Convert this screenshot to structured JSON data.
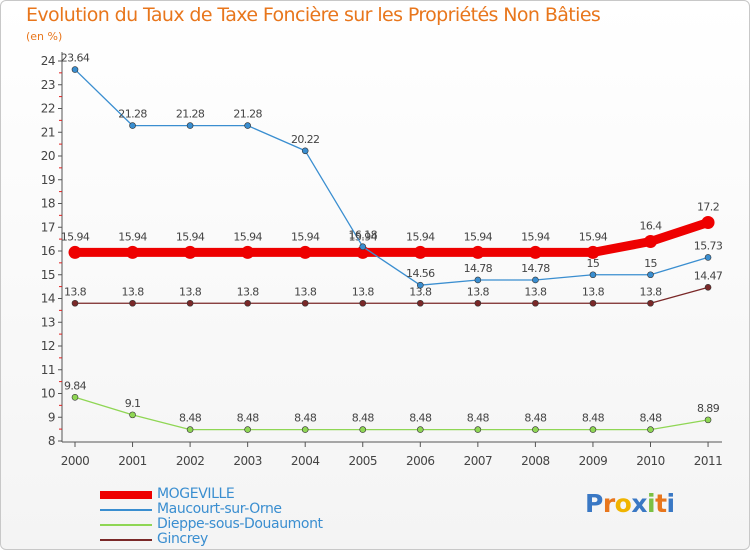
{
  "header": {
    "title": "Evolution du Taux de Taxe Foncière sur les Propriétés Non Bâties",
    "unit_label": "(en %)"
  },
  "logo": {
    "text": "Proxiti",
    "letters": [
      "P",
      "r",
      "o",
      "x",
      "i",
      "t",
      "i"
    ],
    "colors": [
      "#3a78c4",
      "#e8761c",
      "#f0b400",
      "#3a78c4",
      "#7cc043",
      "#e8761c",
      "#3a78c4"
    ]
  },
  "chart_data": {
    "type": "line",
    "title": "Evolution du Taux de Taxe Foncière sur les Propriétés Non Bâties",
    "ylabel": "(en %)",
    "xlabel": "",
    "ylim": [
      8,
      24
    ],
    "yticks": [
      "8",
      "9",
      "10",
      "11",
      "12",
      "13",
      "14",
      "15",
      "16",
      "17",
      "18",
      "19",
      "20",
      "21",
      "22",
      "23",
      "24"
    ],
    "categories": [
      "2000",
      "2001",
      "2002",
      "2003",
      "2004",
      "2005",
      "2006",
      "2007",
      "2008",
      "2009",
      "2010",
      "2011"
    ],
    "series": [
      {
        "name": "Gincrey",
        "color": "#7a2828",
        "values": [
          13.8,
          13.8,
          13.8,
          13.8,
          13.8,
          13.8,
          13.8,
          13.8,
          13.8,
          13.8,
          13.8,
          14.47
        ],
        "labels": [
          "13.8",
          "13.8",
          "13.8",
          "13.8",
          "13.8",
          "13.8",
          "13.8",
          "13.8",
          "13.8",
          "13.8",
          "13.8",
          "14.47"
        ]
      },
      {
        "name": "Dieppe-sous-Douaumont",
        "color": "#8fd654",
        "values": [
          9.84,
          9.1,
          8.48,
          8.48,
          8.48,
          8.48,
          8.48,
          8.48,
          8.48,
          8.48,
          8.48,
          8.89
        ],
        "labels": [
          "9.84",
          "9.1",
          "8.48",
          "8.48",
          "8.48",
          "8.48",
          "8.48",
          "8.48",
          "8.48",
          "8.48",
          "8.48",
          "8.89"
        ]
      },
      {
        "name": "MOGEVILLE",
        "color": "#ee0000",
        "values": [
          15.94,
          15.94,
          15.94,
          15.94,
          15.94,
          15.94,
          15.94,
          15.94,
          15.94,
          15.94,
          16.4,
          17.2
        ],
        "labels": [
          "15.94",
          "15.94",
          "15.94",
          "15.94",
          "15.94",
          "15.94",
          "15.94",
          "15.94",
          "15.94",
          "15.94",
          "16.4",
          "17.2"
        ]
      },
      {
        "name": "Maucourt-sur-Orne",
        "color": "#3a8ed0",
        "values": [
          23.64,
          21.28,
          21.28,
          21.28,
          20.22,
          16.18,
          14.56,
          14.78,
          14.78,
          15,
          15,
          15.73
        ],
        "labels": [
          "23.64",
          "21.28",
          "21.28",
          "21.28",
          "20.22",
          "16.18",
          "14.56",
          "14.78",
          "14.78",
          "15",
          "15",
          "15.73"
        ]
      }
    ],
    "legend": {
      "position": "bottom-left",
      "items": [
        {
          "name": "MOGEVILLE",
          "color": "#ee0000"
        },
        {
          "name": "Maucourt-sur-Orne",
          "color": "#3a8ed0"
        },
        {
          "name": "Dieppe-sous-Douaumont",
          "color": "#8fd654"
        },
        {
          "name": "Gincrey",
          "color": "#7a2828"
        }
      ]
    }
  }
}
